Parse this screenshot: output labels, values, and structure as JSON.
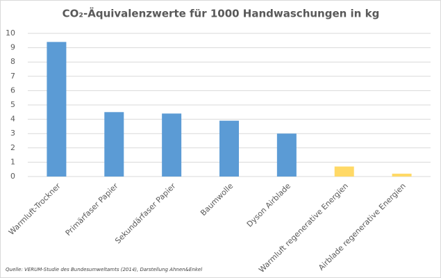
{
  "chart_data": {
    "type": "bar",
    "title": "CO₂-Äquivalenzwerte für 1000 Handwaschungen in kg",
    "categories": [
      "Warmluft-Trockner",
      "Primärfaser Papier",
      "Sekundärfaser Papier",
      "Baumwolle",
      "Dyson Airblade",
      "Warmluft regenerative Energien",
      "Airblade regenerative Energien"
    ],
    "values": [
      9.4,
      4.5,
      4.4,
      3.9,
      3.0,
      0.7,
      0.2
    ],
    "colors": [
      "#5b9bd5",
      "#5b9bd5",
      "#5b9bd5",
      "#5b9bd5",
      "#5b9bd5",
      "#ffd966",
      "#ffd966"
    ],
    "ylim": [
      0,
      10
    ],
    "yticks": [
      0,
      1,
      2,
      3,
      4,
      5,
      6,
      7,
      8,
      9,
      10
    ],
    "grid": true,
    "source": "Quelle: VERUM-Studie des Bundesumweltamts (2014), Darstellung Ahnen&Enkel"
  }
}
